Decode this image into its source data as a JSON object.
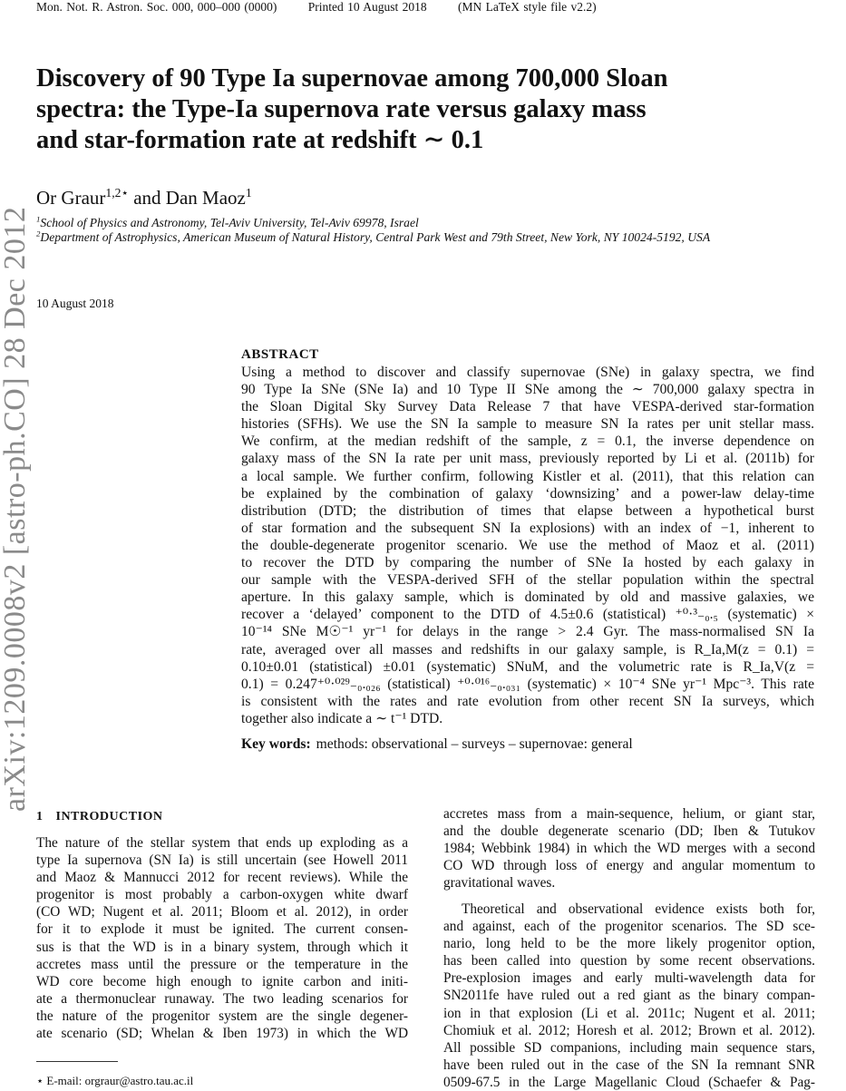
{
  "header": {
    "journal": "Mon. Not. R. Astron. Soc. 000, 000–000 (0000)",
    "printed": "Printed 10 August 2018",
    "style": "(MN LaTeX style file v2.2)"
  },
  "arxiv_stamp": "arXiv:1209.0008v2  [astro-ph.CO]  28 Dec 2012",
  "title": {
    "lines": [
      "Discovery of 90 Type Ia supernovae among 700,000 Sloan",
      "spectra: the Type-Ia supernova rate versus galaxy mass",
      "and star-formation rate at redshift ∼ 0.1"
    ]
  },
  "authors": {
    "a1": "Or Graur",
    "a1_sup": "1,2⋆",
    "and": " and Dan Maoz",
    "a2_sup": "1"
  },
  "affiliations": [
    {
      "num": "1",
      "text": "School of Physics and Astronomy, Tel-Aviv University, Tel-Aviv 69978, Israel"
    },
    {
      "num": "2",
      "text": "Department of Astrophysics, American Museum of Natural History, Central Park West and 79th Street, New York, NY 10024-5192, USA"
    }
  ],
  "date": "10 August 2018",
  "abstract": {
    "heading": "ABSTRACT",
    "lines": [
      "Using a method to discover and classify supernovae (SNe) in galaxy spectra, we find",
      "90 Type Ia SNe (SNe Ia) and 10 Type II SNe among the ∼ 700,000 galaxy spectra in",
      "the Sloan Digital Sky Survey Data Release 7 that have VESPA-derived star-formation",
      "histories (SFHs). We use the SN Ia sample to measure SN Ia rates per unit stellar mass.",
      "We confirm, at the median redshift of the sample, z = 0.1, the inverse dependence on",
      "galaxy mass of the SN Ia rate per unit mass, previously reported by Li et al. (2011b) for",
      "a local sample. We further confirm, following Kistler et al. (2011), that this relation can",
      "be explained by the combination of galaxy ‘downsizing’ and a power-law delay-time",
      "distribution (DTD; the distribution of times that elapse between a hypothetical burst",
      "of star formation and the subsequent SN Ia explosions) with an index of −1, inherent to",
      "the double-degenerate progenitor scenario. We use the method of Maoz et al. (2011)",
      "to recover the DTD by comparing the number of SNe Ia hosted by each galaxy in",
      "our sample with the VESPA-derived SFH of the stellar population within the spectral",
      "aperture. In this galaxy sample, which is dominated by old and massive galaxies, we",
      "recover a ‘delayed’ component to the DTD of 4.5±0.6 (statistical) ⁺⁰·³₋₀.₅ (systematic) ×",
      "10⁻¹⁴ SNe M☉⁻¹ yr⁻¹ for delays in the range > 2.4 Gyr. The mass-normalised SN Ia",
      "rate, averaged over all masses and redshifts in our galaxy sample, is R_Ia,M(z = 0.1) =",
      "0.10±0.01 (statistical) ±0.01 (systematic) SNuM, and the volumetric rate is R_Ia,V(z =",
      "0.1) = 0.247⁺⁰·⁰²⁹₋₀.₀₂₆ (statistical) ⁺⁰·⁰¹⁶₋₀.₀₃₁ (systematic) × 10⁻⁴ SNe yr⁻¹ Mpc⁻³. This rate",
      "is consistent with the rates and rate evolution from other recent SN Ia surveys, which",
      "together also indicate a ∼ t⁻¹ DTD."
    ]
  },
  "keywords": {
    "label": "Key words:",
    "text": "methods: observational – surveys – supernovae: general"
  },
  "section": {
    "number": "1",
    "title": "INTRODUCTION"
  },
  "intro_left": [
    "The nature of the stellar system that ends up exploding as a",
    "type Ia supernova (SN Ia) is still uncertain (see Howell 2011",
    "and Maoz & Mannucci 2012 for recent reviews). While the",
    "progenitor is most probably a carbon-oxygen white dwarf",
    "(CO WD; Nugent et al. 2011; Bloom et al. 2012), in order",
    "for it to explode it must be ignited. The current consen-",
    "sus is that the WD is in a binary system, through which it",
    "accretes mass until the pressure or the temperature in the",
    "WD core become high enough to ignite carbon and initi-",
    "ate a thermonuclear runaway. The two leading scenarios for",
    "the nature of the progenitor system are the single degener-",
    "ate scenario (SD; Whelan & Iben 1973) in which the WD"
  ],
  "intro_right_p1": [
    "accretes mass from a main-sequence, helium, or giant star,",
    "and the double degenerate scenario (DD; Iben & Tutukov",
    "1984; Webbink 1984) in which the WD merges with a second",
    "CO WD through loss of energy and angular momentum to",
    "gravitational waves."
  ],
  "intro_right_p2": [
    "Theoretical and observational evidence exists both for,",
    "and against, each of the progenitor scenarios. The SD sce-",
    "nario, long held to be the more likely progenitor option,",
    "has been called into question by some recent observations.",
    "Pre-explosion images and early multi-wavelength data for",
    "SN2011fe have ruled out a red giant as the binary compan-",
    "ion in that explosion (Li et al. 2011c; Nugent et al. 2011;",
    "Chomiuk et al. 2012; Horesh et al. 2012; Brown et al. 2012).",
    "All possible SD companions, including main sequence stars,",
    "have been ruled out in the case of the SN Ia remnant SNR",
    "0509-67.5 in the Large Magellanic Cloud (Schaefer & Pag-"
  ],
  "footnote": "⋆ E-mail: orgraur@astro.tau.ac.il"
}
